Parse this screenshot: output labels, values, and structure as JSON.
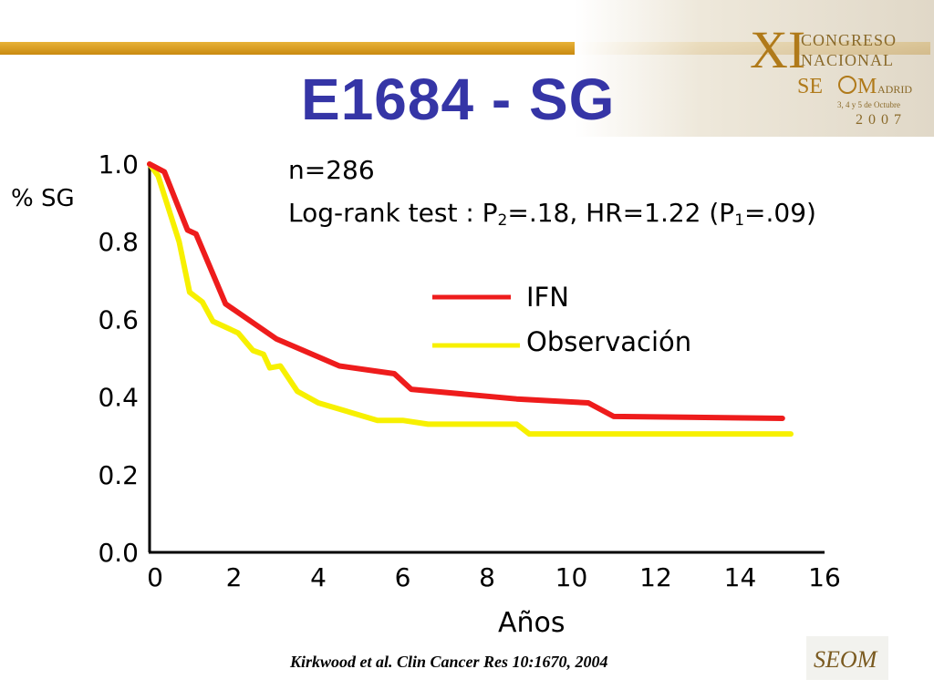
{
  "slide": {
    "title": "E1684 - SG",
    "citation": "Kirkwood et al. Clin Cancer Res 10:1670, 2004"
  },
  "congress_logo": {
    "numeral": "XI",
    "line1": "CONGRESO",
    "line2": "NACIONAL",
    "line3_a": "SE",
    "line3_b": "M",
    "line3_c": "ADRID",
    "dates": "3, 4 y 5 de Octubre",
    "year": "2007"
  },
  "seom_logo": {
    "text": "SEOM"
  },
  "colors": {
    "title": "#3535a6",
    "ifn": "#ee1c1c",
    "observacion": "#f7f000",
    "rule": "#d99a1c"
  },
  "chart_data": {
    "type": "line",
    "ylabel": "% SG",
    "xlabel": "Años",
    "x_ticks": [
      "0",
      "2",
      "4",
      "6",
      "8",
      "10",
      "12",
      "14",
      "16"
    ],
    "y_ticks": [
      "0.0",
      "0.2",
      "0.4",
      "0.6",
      "0.8",
      "1.0"
    ],
    "xlim": [
      0,
      16
    ],
    "ylim": [
      0,
      1.0
    ],
    "annotations": {
      "n": "n=286",
      "logrank_prefix": "Log-rank test : P",
      "logrank_sub1": "2",
      "logrank_mid": "=.18, HR=1.22 (P",
      "logrank_sub2": "1",
      "logrank_suffix": "=.09)"
    },
    "legend_position": "center-right",
    "series": [
      {
        "name": "IFN",
        "color": "#ee1c1c",
        "x": [
          0,
          0.35,
          0.9,
          1.1,
          1.8,
          3.0,
          4.5,
          5.8,
          6.2,
          8.7,
          10.4,
          11.0,
          15.0
        ],
        "y": [
          1.0,
          0.98,
          0.83,
          0.82,
          0.64,
          0.55,
          0.48,
          0.46,
          0.42,
          0.395,
          0.385,
          0.35,
          0.345
        ]
      },
      {
        "name": "Observación",
        "color": "#f7f000",
        "x": [
          0,
          0.2,
          0.7,
          0.95,
          1.25,
          1.5,
          2.1,
          2.45,
          2.7,
          2.85,
          3.1,
          3.5,
          4.0,
          5.4,
          6.0,
          6.6,
          8.7,
          9.0,
          15.2
        ],
        "y": [
          1.0,
          0.97,
          0.8,
          0.67,
          0.645,
          0.595,
          0.565,
          0.52,
          0.51,
          0.475,
          0.48,
          0.415,
          0.385,
          0.34,
          0.34,
          0.33,
          0.33,
          0.305,
          0.305
        ]
      }
    ]
  }
}
